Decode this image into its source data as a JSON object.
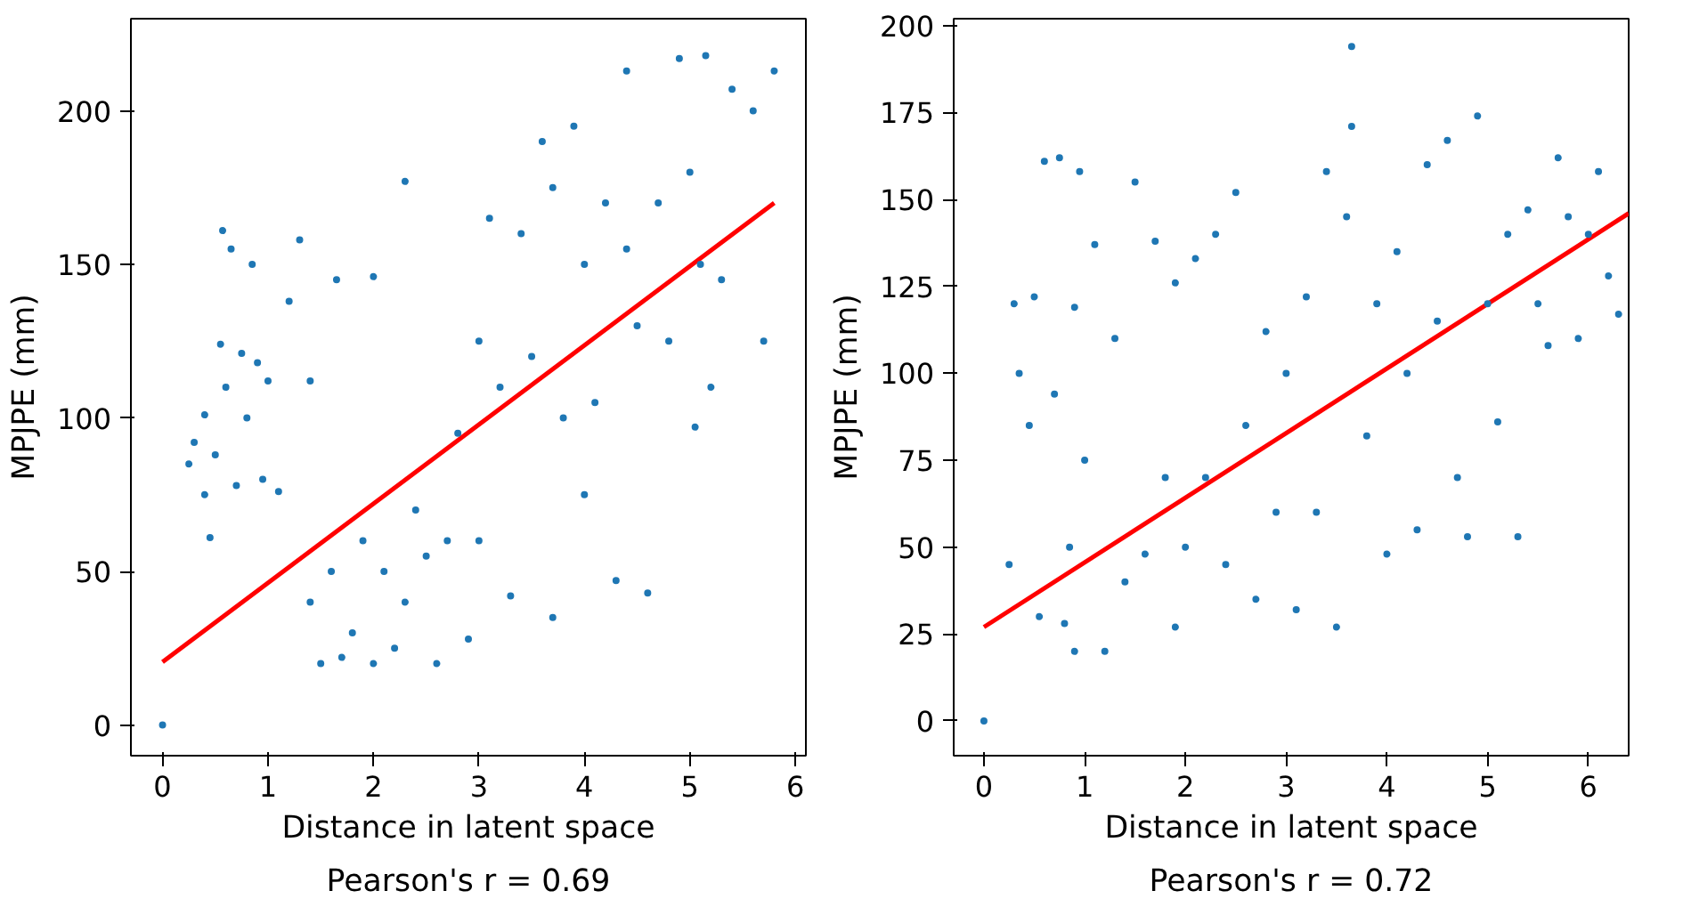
{
  "chart_data": [
    {
      "type": "scatter",
      "xlabel": "Distance in latent space",
      "ylabel": "MPJPE (mm)",
      "annotations": [
        "Pearson's r = 0.69"
      ],
      "xlim": [
        -0.3,
        6.1
      ],
      "ylim": [
        -10,
        230
      ],
      "xticks": [
        0,
        1,
        2,
        3,
        4,
        5,
        6
      ],
      "yticks": [
        0,
        50,
        100,
        150,
        200
      ],
      "series": [
        {
          "marker": "circle",
          "color": "#1f77b4",
          "x": [
            0,
            0.25,
            0.3,
            0.4,
            0.4,
            0.45,
            0.5,
            0.55,
            0.57,
            0.6,
            0.65,
            0.7,
            0.75,
            0.8,
            0.85,
            0.9,
            0.95,
            1.0,
            1.1,
            1.2,
            1.3,
            1.4,
            1.4,
            1.5,
            1.6,
            1.65,
            1.7,
            1.8,
            1.9,
            2.0,
            2.0,
            2.1,
            2.2,
            2.3,
            2.3,
            2.4,
            2.5,
            2.6,
            2.7,
            2.8,
            2.9,
            3.0,
            3.0,
            3.1,
            3.2,
            3.3,
            3.4,
            3.5,
            3.6,
            3.7,
            3.7,
            3.8,
            3.9,
            4.0,
            4.0,
            4.1,
            4.2,
            4.3,
            4.4,
            4.4,
            4.5,
            4.6,
            4.7,
            4.8,
            4.9,
            5.0,
            5.05,
            5.1,
            5.15,
            5.2,
            5.3,
            5.4,
            5.6,
            5.7,
            5.8
          ],
          "values": [
            0,
            85,
            92,
            101,
            75,
            61,
            88,
            124,
            161,
            110,
            155,
            78,
            121,
            100,
            150,
            118,
            80,
            112,
            76,
            138,
            158,
            112,
            40,
            20,
            50,
            145,
            22,
            30,
            60,
            20,
            146,
            50,
            25,
            177,
            40,
            70,
            55,
            20,
            60,
            95,
            28,
            125,
            60,
            165,
            110,
            42,
            160,
            120,
            190,
            35,
            175,
            100,
            195,
            150,
            75,
            105,
            170,
            47,
            213,
            155,
            130,
            43,
            170,
            125,
            217,
            180,
            97,
            150,
            218,
            110,
            145,
            207,
            200,
            125,
            213
          ]
        },
        {
          "type": "line",
          "marker": "none",
          "color": "#ff0000",
          "x": [
            0,
            5.8
          ],
          "values": [
            20.5,
            170
          ]
        }
      ]
    },
    {
      "type": "scatter",
      "xlabel": "Distance in latent space",
      "ylabel": "MPJPE (mm)",
      "annotations": [
        "Pearson's r = 0.72"
      ],
      "xlim": [
        -0.3,
        6.4
      ],
      "ylim": [
        -10,
        202
      ],
      "xticks": [
        0,
        1,
        2,
        3,
        4,
        5,
        6
      ],
      "yticks": [
        0,
        25,
        50,
        75,
        100,
        125,
        150,
        175,
        200
      ],
      "series": [
        {
          "marker": "circle",
          "color": "#1f77b4",
          "x": [
            0,
            0.25,
            0.3,
            0.35,
            0.45,
            0.5,
            0.55,
            0.6,
            0.7,
            0.75,
            0.8,
            0.85,
            0.9,
            0.9,
            0.95,
            1.0,
            1.1,
            1.2,
            1.3,
            1.4,
            1.5,
            1.6,
            1.7,
            1.8,
            1.9,
            1.9,
            2.0,
            2.1,
            2.2,
            2.3,
            2.4,
            2.5,
            2.6,
            2.7,
            2.8,
            2.9,
            3.0,
            3.1,
            3.2,
            3.3,
            3.4,
            3.5,
            3.6,
            3.65,
            3.65,
            3.8,
            3.9,
            4.0,
            4.1,
            4.2,
            4.3,
            4.4,
            4.5,
            4.6,
            4.7,
            4.8,
            4.9,
            5.0,
            5.1,
            5.2,
            5.3,
            5.4,
            5.5,
            5.6,
            5.7,
            5.8,
            5.9,
            6.0,
            6.1,
            6.2,
            6.3
          ],
          "values": [
            0,
            45,
            120,
            100,
            85,
            122,
            30,
            161,
            94,
            162,
            28,
            50,
            20,
            119,
            158,
            75,
            137,
            20,
            110,
            40,
            155,
            48,
            138,
            70,
            27,
            126,
            50,
            133,
            70,
            140,
            45,
            152,
            85,
            35,
            112,
            60,
            100,
            32,
            122,
            60,
            158,
            27,
            145,
            194,
            171,
            82,
            120,
            48,
            135,
            100,
            55,
            160,
            115,
            167,
            70,
            53,
            174,
            120,
            86,
            140,
            53,
            147,
            120,
            108,
            162,
            145,
            110,
            140,
            158,
            128,
            117
          ]
        },
        {
          "type": "line",
          "marker": "none",
          "color": "#ff0000",
          "x": [
            0,
            6.4
          ],
          "values": [
            27,
            146
          ]
        }
      ]
    }
  ]
}
